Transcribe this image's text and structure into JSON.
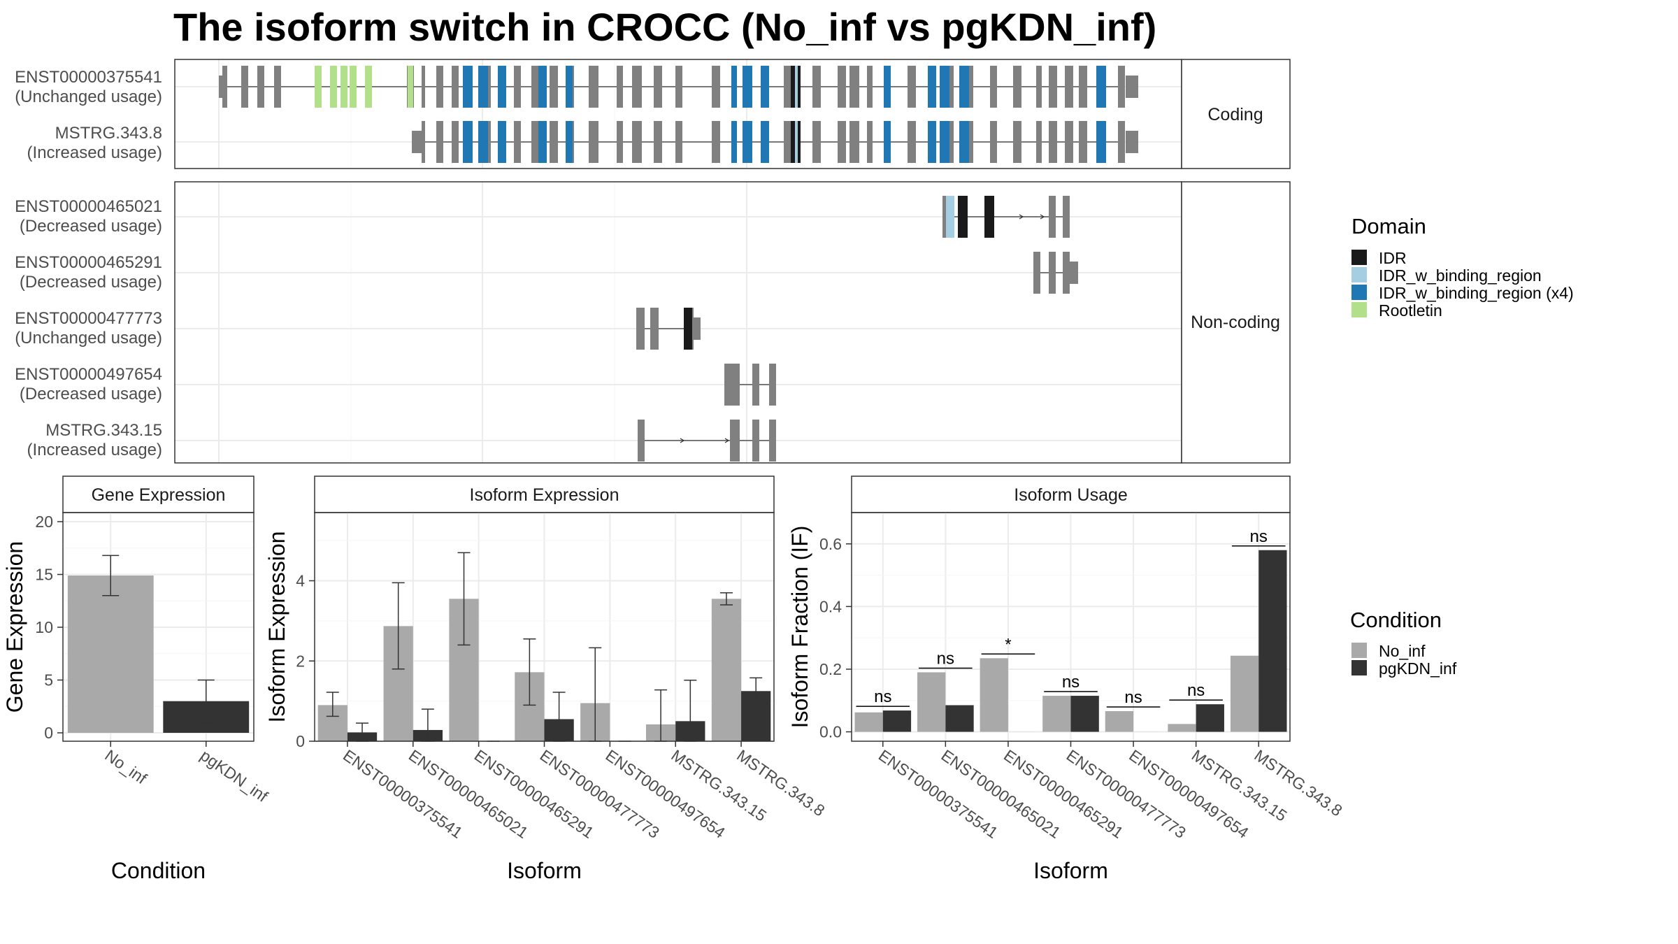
{
  "title": "The isoform switch in CROCC (No_inf vs pgKDN_inf)",
  "colors": {
    "no_inf": "#a9a9a9",
    "pgkdn_inf": "#333333",
    "exon": "#808080",
    "IDR": "#1a1a1a",
    "IDR_w_binding_region": "#a6cee3",
    "IDR_w_binding_region_x4": "#1f78b4",
    "Rootletin": "#b2df8a"
  },
  "structure": {
    "coding_label": "Coding",
    "noncoding_label": "Non-coding",
    "coding": [
      {
        "id": "ENST00000375541",
        "usage": "(Unchanged usage)"
      },
      {
        "id": "MSTRG.343.8",
        "usage": "(Increased usage)"
      }
    ],
    "noncoding": [
      {
        "id": "ENST00000465021",
        "usage": "(Decreased usage)"
      },
      {
        "id": "ENST00000465291",
        "usage": "(Decreased usage)"
      },
      {
        "id": "ENST00000477773",
        "usage": "(Unchanged usage)"
      },
      {
        "id": "ENST00000497654",
        "usage": "(Decreased usage)"
      },
      {
        "id": "MSTRG.343.15",
        "usage": "(Increased usage)"
      }
    ]
  },
  "domain_legend": {
    "title": "Domain",
    "items": [
      {
        "label": "IDR",
        "key": "IDR"
      },
      {
        "label": "IDR_w_binding_region",
        "key": "IDR_w_binding_region"
      },
      {
        "label": "IDR_w_binding_region (x4)",
        "key": "IDR_w_binding_region_x4"
      },
      {
        "label": "Rootletin",
        "key": "Rootletin"
      }
    ]
  },
  "condition_legend": {
    "title": "Condition",
    "items": [
      {
        "label": "No_inf",
        "key": "no_inf"
      },
      {
        "label": "pgKDN_inf",
        "key": "pgkdn_inf"
      }
    ]
  },
  "chart_data": [
    {
      "type": "bar",
      "title": "Gene Expression",
      "xlabel": "Condition",
      "ylabel": "Gene Expression",
      "ylim": [
        0,
        20
      ],
      "yticks": [
        0,
        5,
        10,
        15,
        20
      ],
      "categories": [
        "No_inf",
        "pgKDN_inf"
      ],
      "values": [
        14.9,
        3.0
      ],
      "errors": [
        [
          13.0,
          16.8
        ],
        [
          1.0,
          5.0
        ]
      ]
    },
    {
      "type": "bar",
      "title": "Isoform Expression",
      "xlabel": "Isoform",
      "ylabel": "Isoform Expression",
      "ylim": [
        0,
        5.7
      ],
      "yticks": [
        0,
        2,
        4
      ],
      "categories": [
        "ENST00000375541",
        "ENST00000465021",
        "ENST00000465291",
        "ENST00000477773",
        "ENST00000497654",
        "MSTRG.343.15",
        "MSTRG.343.8"
      ],
      "series": [
        {
          "name": "No_inf",
          "values": [
            0.9,
            2.87,
            3.55,
            1.72,
            0.95,
            0.42,
            3.55
          ],
          "errors": [
            [
              0.62,
              1.22
            ],
            [
              1.8,
              3.95
            ],
            [
              2.4,
              4.7
            ],
            [
              0.9,
              2.55
            ],
            [
              0.0,
              2.33
            ],
            [
              0.0,
              1.28
            ],
            [
              3.4,
              3.7
            ]
          ]
        },
        {
          "name": "pgKDN_inf",
          "values": [
            0.22,
            0.28,
            0.0,
            0.55,
            0.0,
            0.5,
            1.25
          ],
          "errors": [
            [
              0.0,
              0.45
            ],
            [
              0.0,
              0.8
            ],
            [
              0.0,
              0.0
            ],
            [
              0.0,
              1.22
            ],
            [
              0.0,
              0.0
            ],
            [
              0.0,
              1.52
            ],
            [
              0.9,
              1.58
            ]
          ]
        }
      ]
    },
    {
      "type": "bar",
      "title": "Isoform Usage",
      "xlabel": "Isoform",
      "ylabel": "Isoform Fraction (IF)",
      "ylim": [
        -0.03,
        0.7
      ],
      "yticks": [
        0.0,
        0.2,
        0.4,
        0.6
      ],
      "categories": [
        "ENST00000375541",
        "ENST00000465021",
        "ENST00000465291",
        "ENST00000477773",
        "ENST00000497654",
        "MSTRG.343.15",
        "MSTRG.343.8"
      ],
      "series": [
        {
          "name": "No_inf",
          "values": [
            0.062,
            0.19,
            0.235,
            0.115,
            0.066,
            0.025,
            0.243
          ]
        },
        {
          "name": "pgKDN_inf",
          "values": [
            0.068,
            0.085,
            0.0,
            0.115,
            0.0,
            0.088,
            0.58
          ]
        }
      ],
      "significance": [
        "ns",
        "ns",
        "*",
        "ns",
        "ns",
        "ns",
        "ns"
      ]
    }
  ]
}
